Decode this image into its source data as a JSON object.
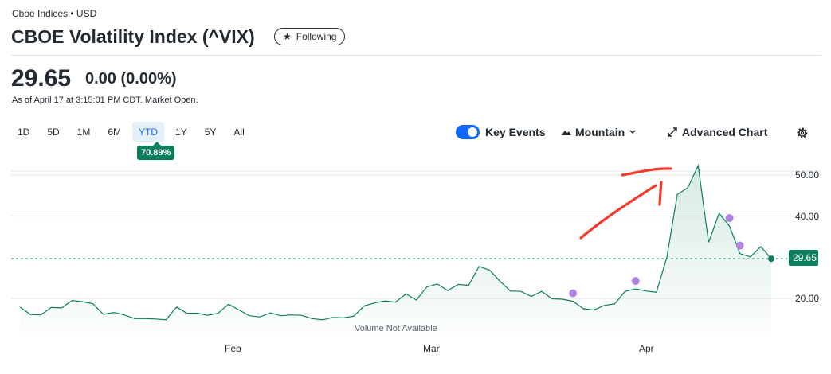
{
  "header": {
    "exchange": "Cboe Indices • USD",
    "title": "CBOE Volatility Index (^VIX)",
    "follow_label": "Following"
  },
  "quote": {
    "price": "29.65",
    "change": "0.00",
    "change_pct": "(0.00%)",
    "as_of": "As of April 17 at 3:15:01 PM CDT. Market Open."
  },
  "ranges": [
    "1D",
    "5D",
    "1M",
    "6M",
    "YTD",
    "1Y",
    "5Y",
    "All"
  ],
  "active_range": "YTD",
  "ytd_return": "70.89%",
  "controls": {
    "key_events_label": "Key Events",
    "key_events_on": true,
    "chart_type_label": "Mountain",
    "advanced_label": "Advanced Chart"
  },
  "colors": {
    "line": "#0b7f5b",
    "accent": "#0f69ff",
    "event_dot": "#b084e0",
    "annotation": "#f23a2c"
  },
  "chart_data": {
    "type": "area",
    "x_labels": [
      "Feb",
      "Mar",
      "Apr"
    ],
    "y_ticks": [
      "50.00",
      "40.00",
      "20.00"
    ],
    "ylim": [
      13,
      53.5
    ],
    "grid": true,
    "last_value": "29.65",
    "volume_note": "Volume Not Available",
    "x": [
      "Jan 2",
      "Jan 3",
      "Jan 6",
      "Jan 7",
      "Jan 8",
      "Jan 10",
      "Jan 13",
      "Jan 14",
      "Jan 15",
      "Jan 16",
      "Jan 17",
      "Jan 21",
      "Jan 22",
      "Jan 23",
      "Jan 24",
      "Jan 27",
      "Jan 28",
      "Jan 29",
      "Jan 30",
      "Jan 31",
      "Feb 3",
      "Feb 4",
      "Feb 5",
      "Feb 6",
      "Feb 7",
      "Feb 10",
      "Feb 11",
      "Feb 12",
      "Feb 13",
      "Feb 14",
      "Feb 18",
      "Feb 19",
      "Feb 20",
      "Feb 21",
      "Feb 24",
      "Feb 25",
      "Feb 26",
      "Feb 27",
      "Feb 28",
      "Mar 3",
      "Mar 4",
      "Mar 5",
      "Mar 6",
      "Mar 7",
      "Mar 10",
      "Mar 11",
      "Mar 12",
      "Mar 13",
      "Mar 14",
      "Mar 17",
      "Mar 18",
      "Mar 19",
      "Mar 20",
      "Mar 21",
      "Mar 24",
      "Mar 25",
      "Mar 26",
      "Mar 27",
      "Mar 28",
      "Mar 31",
      "Apr 1",
      "Apr 2",
      "Apr 3",
      "Apr 4",
      "Apr 7",
      "Apr 8",
      "Apr 9",
      "Apr 10",
      "Apr 11",
      "Apr 14",
      "Apr 15",
      "Apr 16",
      "Apr 17"
    ],
    "values": [
      17.9,
      16.1,
      16.0,
      17.8,
      17.7,
      19.5,
      19.2,
      18.7,
      16.1,
      16.6,
      16.0,
      15.1,
      15.1,
      15.0,
      14.8,
      17.9,
      16.4,
      16.4,
      15.9,
      16.4,
      18.6,
      17.2,
      15.8,
      15.5,
      16.5,
      15.8,
      16.0,
      15.9,
      15.1,
      14.8,
      15.4,
      15.3,
      15.7,
      18.2,
      18.9,
      19.4,
      19.1,
      21.1,
      19.6,
      22.8,
      23.5,
      21.9,
      23.4,
      23.2,
      27.8,
      26.9,
      24.2,
      21.8,
      21.7,
      20.5,
      21.7,
      19.9,
      19.8,
      19.3,
      17.5,
      17.2,
      18.3,
      18.7,
      21.7,
      22.3,
      21.8,
      21.5,
      30.0,
      45.3,
      46.9,
      52.3,
      33.6,
      40.7,
      37.6,
      30.9,
      30.1,
      32.6,
      29.65
    ],
    "key_events": [
      "Mar 21",
      "Mar 31",
      "Apr 11",
      "Apr 14"
    ]
  }
}
